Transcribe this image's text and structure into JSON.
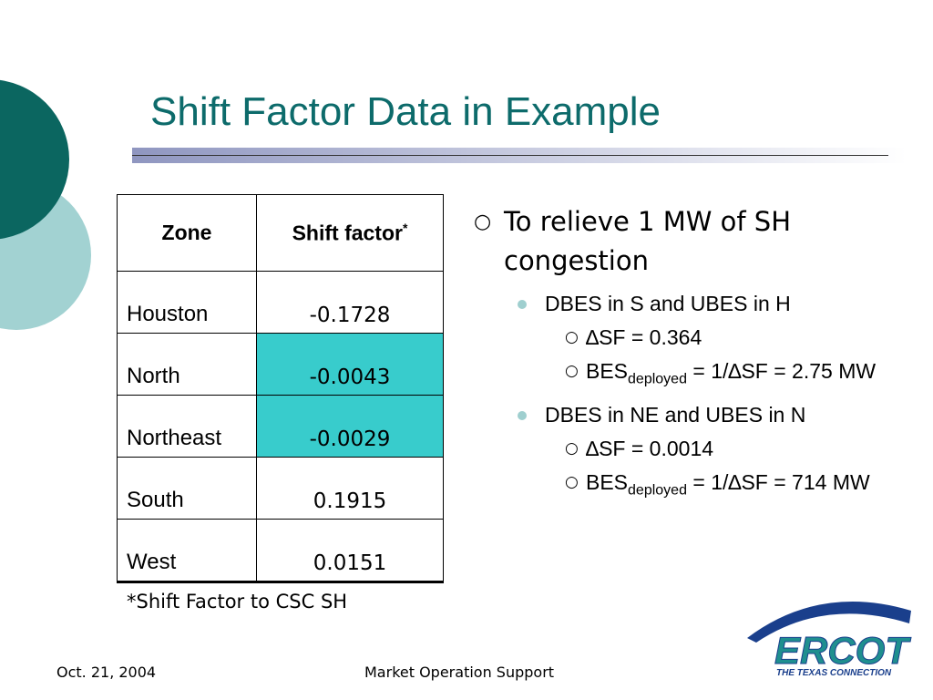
{
  "title": "Shift Factor Data in Example",
  "table": {
    "header": {
      "zone": "Zone",
      "factor": "Shift factor",
      "factor_mark": "*"
    },
    "rows": [
      [
        "Houston",
        "-0.1728"
      ],
      [
        "North",
        "-0.0043"
      ],
      [
        "Northeast",
        "-0.0029"
      ],
      [
        "South",
        "0.1915"
      ],
      [
        "West",
        "0.0151"
      ]
    ],
    "footnote": "*Shift Factor to CSC SH"
  },
  "bullets": {
    "main": "To relieve 1 MW of SH congestion",
    "items": [
      {
        "text": "DBES in S and UBES in H",
        "subs": [
          {
            "text": "∆SF = 0.364"
          },
          {
            "text": "BES",
            "sub": "deployed",
            "rest": " = 1/∆SF = 2.75 MW"
          }
        ]
      },
      {
        "text": "DBES in NE and UBES in N",
        "subs": [
          {
            "text": "∆SF = 0.0014"
          },
          {
            "text": "BES",
            "sub": "deployed",
            "rest": " = 1/∆SF = 714 MW"
          }
        ]
      }
    ]
  },
  "footer": {
    "date": "Oct. 21, 2004",
    "center": "Market Operation Support"
  },
  "logo": {
    "name": "ERCOT",
    "tagline": "THE TEXAS CONNECTION"
  }
}
